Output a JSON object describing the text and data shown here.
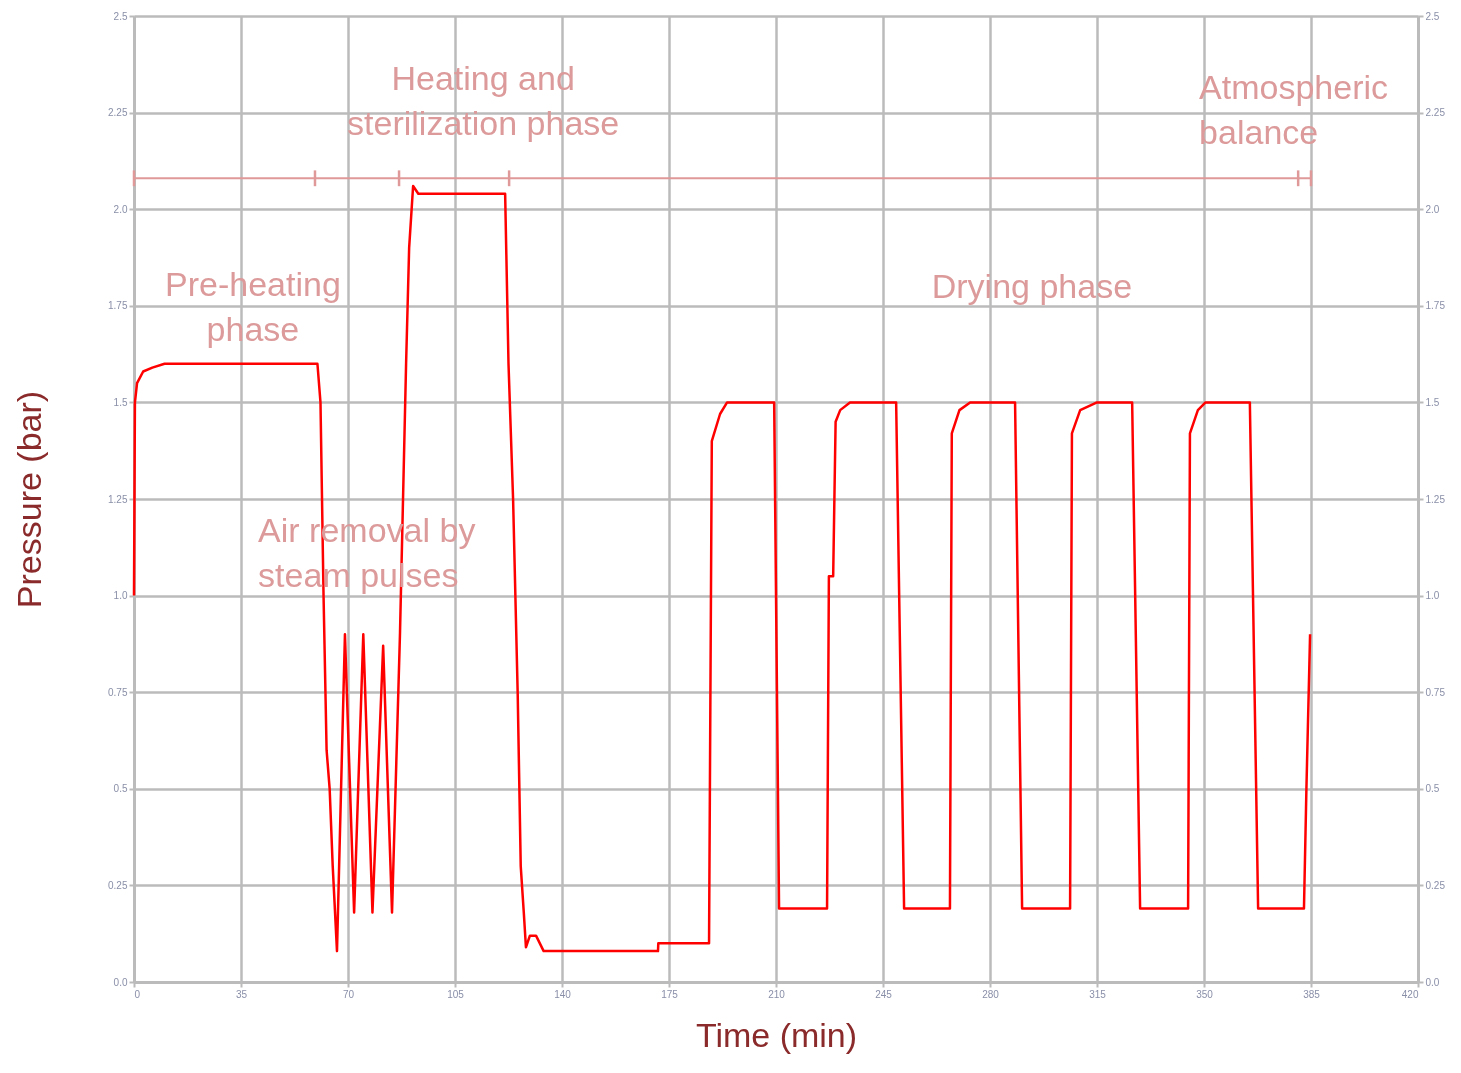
{
  "chart_data": {
    "type": "line",
    "xlabel": "Time (min)",
    "ylabel": "Pressure (bar)",
    "xlim": [
      0,
      420
    ],
    "xticks": [
      0,
      35,
      70,
      105,
      140,
      175,
      210,
      245,
      280,
      315,
      350,
      385,
      420
    ],
    "ylim": [
      0,
      2.5
    ],
    "yticks": [
      {
        "value": 0,
        "label": "0.0"
      },
      0.25,
      0.5,
      0.75,
      {
        "value": 1,
        "label": "1.0"
      },
      1.25,
      1.5,
      1.75,
      {
        "value": 2,
        "label": "2.0"
      },
      2.25,
      2.5
    ],
    "y2lim": [
      0,
      2.5
    ],
    "y2ticks": [
      {
        "value": 0,
        "label": "0.0"
      },
      0.25,
      0.5,
      0.75,
      {
        "value": 1,
        "label": "1.0"
      },
      1.25,
      1.5,
      1.75,
      {
        "value": 2,
        "label": "2.0"
      },
      2.25,
      2.5
    ],
    "grid": true,
    "annotations": [
      "Pre-heating\nphase",
      "Air removal by\nsteam pulses",
      "Heating and\nsterilization phase",
      "Drying phase",
      "Atmospheric\nbalance"
    ],
    "series": [
      {
        "color": "#ff0000",
        "x": [
          0,
          0.3,
          1,
          3,
          6,
          10,
          60,
          61,
          62,
          63,
          64,
          65,
          66.4,
          69,
          72,
          75,
          78,
          81.5,
          84.4,
          87,
          89,
          90,
          91.3,
          93,
          121.4,
          122.5,
          124,
          125.5,
          126.5,
          127.5,
          128.2,
          129.5,
          131.5,
          134,
          171.4,
          171.5,
          188.1,
          189,
          191.7,
          194,
          209.4,
          211,
          226.7,
          227.3,
          228.7,
          229.5,
          231,
          234.2,
          249.3,
          251.9,
          266.9,
          267.5,
          270,
          273.5,
          288.2,
          290.5,
          306.2,
          306.8,
          309.5,
          315,
          326.5,
          329.1,
          344.8,
          345.4,
          348,
          350.5,
          365,
          367.7,
          382.7,
          383.5,
          384.7
        ],
        "values": [
          1.0,
          1.5,
          1.55,
          1.58,
          1.59,
          1.6,
          1.6,
          1.5,
          1.0,
          0.6,
          0.5,
          0.3,
          0.08,
          0.9,
          0.18,
          0.9,
          0.18,
          0.87,
          0.18,
          0.9,
          1.6,
          1.9,
          2.06,
          2.04,
          2.04,
          1.6,
          1.25,
          0.75,
          0.3,
          0.18,
          0.09,
          0.12,
          0.12,
          0.08,
          0.08,
          0.1,
          0.1,
          1.4,
          1.47,
          1.5,
          1.5,
          0.19,
          0.19,
          1.05,
          1.05,
          1.45,
          1.48,
          1.5,
          1.5,
          0.19,
          0.19,
          1.42,
          1.48,
          1.5,
          1.5,
          0.19,
          0.19,
          1.42,
          1.48,
          1.5,
          1.5,
          0.19,
          0.19,
          1.42,
          1.48,
          1.5,
          1.5,
          0.19,
          0.19,
          0.5,
          0.9
        ]
      },
      {
        "color": "#e09999",
        "x": [
          0,
          59.2,
          86.7,
          122.7,
          380.8,
          385
        ],
        "values": [
          2.08,
          2.08,
          2.08,
          2.08,
          2.08,
          2.08
        ]
      }
    ]
  }
}
